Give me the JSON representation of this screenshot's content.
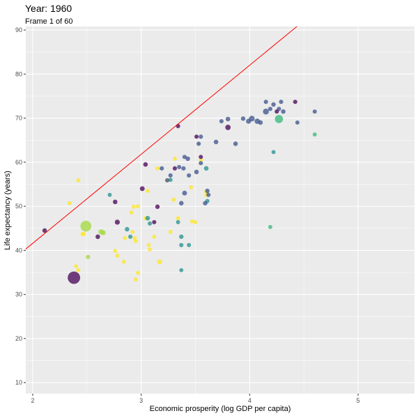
{
  "chart_data": {
    "type": "scatter",
    "title": "Year: 1960",
    "subtitle": "Frame 1 of 60",
    "x_label": "Economic prosperity (log GDP per capita)",
    "y_label": "Life expectancy (years)",
    "xlim": [
      1.936,
      5.52
    ],
    "ylim": [
      7.5,
      90.8
    ],
    "xticks": [
      2,
      3,
      4,
      5
    ],
    "yticks": [
      10,
      20,
      30,
      40,
      50,
      60,
      70,
      80,
      90
    ],
    "grid": true,
    "reference_line": {
      "slope": 20.2,
      "intercept": 1.2,
      "color": "#ff0000"
    },
    "series": [
      {
        "color": "#fde725",
        "x": [
          2.42,
          2.34,
          2.46,
          2.47,
          2.4,
          2.42,
          2.76,
          2.78,
          2.84,
          2.85,
          2.91,
          2.93,
          2.92,
          2.94,
          2.95,
          2.95,
          2.97,
          3.04,
          3.06,
          3.07,
          3.08,
          3.12,
          3.15,
          3.17,
          3.24,
          3.27,
          3.3,
          3.34,
          3.31,
          3.46,
          3.47,
          3.5,
          3.55,
          3.6,
          3.6,
          2.97
        ],
        "y": [
          55.9,
          50.7,
          43.7,
          43.7,
          36.4,
          35.5,
          39.9,
          38.8,
          37.4,
          42.8,
          48.6,
          49.9,
          44.2,
          42.8,
          42.1,
          33.4,
          34.9,
          47.3,
          53.5,
          41.2,
          40.2,
          43.1,
          58.6,
          37.4,
          55.9,
          44.2,
          51.5,
          47.3,
          60.8,
          54.3,
          46.6,
          46.4,
          60.5,
          52.6,
          53.3,
          50.0
        ],
        "size": [
          3,
          3,
          5,
          3,
          3,
          3,
          3,
          5,
          3,
          3,
          3,
          3,
          3,
          3,
          3,
          3,
          3,
          3,
          3,
          3,
          3,
          3,
          3,
          20,
          3,
          3,
          3,
          3,
          3,
          3,
          3,
          3,
          3,
          5,
          3,
          3
        ]
      },
      {
        "color": "#21908c",
        "x": [
          2.71,
          2.87,
          2.9,
          3.06,
          3.08,
          3.34,
          3.37,
          3.37,
          3.44,
          3.37,
          3.61,
          3.6,
          4.22,
          3.27
        ],
        "y": [
          52.6,
          44.8,
          43.1,
          47.3,
          46.1,
          46.4,
          43.1,
          41.2,
          41.2,
          35.5,
          51.2,
          58.6,
          62.3,
          56.0
        ],
        "size": [
          3,
          10,
          5,
          10,
          5,
          4,
          8,
          5,
          4,
          3,
          5,
          10,
          3,
          4
        ]
      },
      {
        "color": "#3b528b",
        "x": [
          3.19,
          3.24,
          3.27,
          3.35,
          3.39,
          3.4,
          3.43,
          3.44,
          3.51,
          3.53,
          3.55,
          3.59,
          3.61,
          3.62,
          3.69,
          3.74,
          3.8,
          3.87,
          3.94,
          3.99,
          4.02,
          4.07,
          4.1,
          4.15,
          4.15,
          4.19,
          4.22,
          4.27,
          4.29,
          4.31,
          4.44,
          4.6,
          3.4,
          3.37,
          3.55
        ],
        "y": [
          58.6,
          55.9,
          57.0,
          58.9,
          58.6,
          61.2,
          60.8,
          57.0,
          57.8,
          64.2,
          65.8,
          50.7,
          53.5,
          52.6,
          64.6,
          69.3,
          69.8,
          64.2,
          69.9,
          69.3,
          69.9,
          69.3,
          69.0,
          71.5,
          73.7,
          72.1,
          73.1,
          72.1,
          73.7,
          71.5,
          69.0,
          71.5,
          53.0,
          50.7,
          59.8
        ],
        "size": [
          5,
          5,
          5,
          5,
          6,
          5,
          8,
          5,
          10,
          5,
          5,
          8,
          8,
          5,
          10,
          5,
          10,
          10,
          8,
          20,
          40,
          30,
          9,
          50,
          5,
          5,
          8,
          5,
          5,
          8,
          4,
          4,
          15,
          10,
          5
        ]
      },
      {
        "color": "#440154",
        "x": [
          2.11,
          2.38,
          2.6,
          2.76,
          2.78,
          3.01,
          3.04,
          3.12,
          3.15,
          3.31,
          3.34,
          3.51,
          3.8,
          4.25,
          4.42,
          3.55
        ],
        "y": [
          44.5,
          33.8,
          43.1,
          51.0,
          46.4,
          54.0,
          59.5,
          46.4,
          49.9,
          58.6,
          68.2,
          65.8,
          67.9,
          71.5,
          73.7,
          61.2
        ],
        "size": [
          10,
          660,
          10,
          10,
          20,
          15,
          10,
          5,
          8,
          5,
          5,
          4,
          30,
          5,
          5,
          4
        ]
      },
      {
        "color": "#35b779",
        "x": [
          4.27,
          4.6,
          4.19
        ],
        "y": [
          69.8,
          66.3,
          45.3
        ],
        "size": [
          180,
          3,
          3
        ]
      },
      {
        "color": "#a0da39",
        "x": [
          2.49,
          2.63,
          2.65,
          2.51
        ],
        "y": [
          45.5,
          44.2,
          44.0,
          38.5
        ],
        "size": [
          450,
          30,
          20,
          5
        ]
      }
    ]
  }
}
